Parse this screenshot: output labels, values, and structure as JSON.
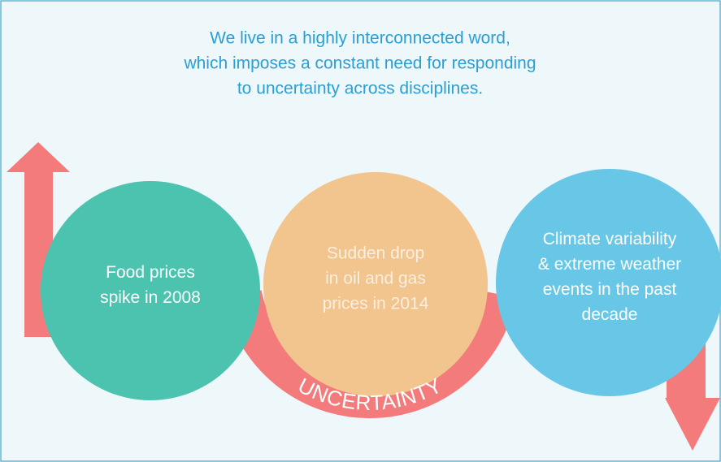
{
  "header": {
    "title_lines": [
      "We live in a highly interconnected word,",
      "which imposes a constant need for responding",
      "to uncertainty across disciplines."
    ]
  },
  "nodes": [
    {
      "lines": [
        "Food prices",
        "spike in 2008"
      ]
    },
    {
      "lines": [
        "Sudden drop",
        "in oil and gas",
        "prices in 2014"
      ]
    },
    {
      "lines": [
        "Climate variability",
        "& extreme weather",
        "events in the past",
        "decade"
      ]
    }
  ],
  "banner": {
    "label": "UNCERTAINTY"
  }
}
